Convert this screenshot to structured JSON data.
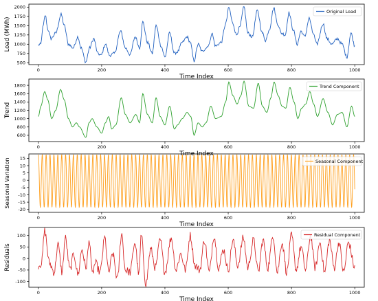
{
  "chart_data": [
    {
      "type": "line",
      "xlabel": "Time Index",
      "ylabel": "Load (MWh)",
      "xlim": [
        -30,
        1030
      ],
      "ylim": [
        450,
        2080
      ],
      "xticks": [
        0,
        200,
        400,
        600,
        800,
        1000
      ],
      "yticks": [
        500,
        750,
        1000,
        1250,
        1500,
        1750,
        2000
      ],
      "legend_position": "top-right",
      "series": [
        {
          "name": "Original Load",
          "color": "#1f5fbf",
          "keypoints": [
            [
              0,
              980
            ],
            [
              8,
              1000
            ],
            [
              14,
              1450
            ],
            [
              22,
              1780
            ],
            [
              30,
              1400
            ],
            [
              40,
              1150
            ],
            [
              55,
              1300
            ],
            [
              72,
              1800
            ],
            [
              82,
              1500
            ],
            [
              95,
              1000
            ],
            [
              110,
              900
            ],
            [
              125,
              1200
            ],
            [
              135,
              900
            ],
            [
              150,
              520
            ],
            [
              162,
              900
            ],
            [
              175,
              1150
            ],
            [
              188,
              750
            ],
            [
              198,
              700
            ],
            [
              212,
              1000
            ],
            [
              225,
              700
            ],
            [
              240,
              750
            ],
            [
              260,
              1350
            ],
            [
              275,
              900
            ],
            [
              290,
              720
            ],
            [
              306,
              1200
            ],
            [
              320,
              900
            ],
            [
              330,
              1600
            ],
            [
              345,
              1050
            ],
            [
              360,
              750
            ],
            [
              372,
              1500
            ],
            [
              388,
              950
            ],
            [
              400,
              650
            ],
            [
              415,
              1300
            ],
            [
              430,
              750
            ],
            [
              440,
              800
            ],
            [
              455,
              1050
            ],
            [
              470,
              1200
            ],
            [
              480,
              1050
            ],
            [
              492,
              550
            ],
            [
              505,
              1000
            ],
            [
              518,
              800
            ],
            [
              530,
              900
            ],
            [
              540,
              1000
            ],
            [
              548,
              1300
            ],
            [
              560,
              950
            ],
            [
              578,
              1050
            ],
            [
              592,
              1550
            ],
            [
              602,
              1980
            ],
            [
              615,
              1550
            ],
            [
              626,
              1250
            ],
            [
              636,
              1450
            ],
            [
              650,
              2000
            ],
            [
              662,
              1300
            ],
            [
              676,
              1200
            ],
            [
              692,
              1900
            ],
            [
              708,
              1300
            ],
            [
              718,
              1100
            ],
            [
              730,
              1400
            ],
            [
              744,
              1980
            ],
            [
              756,
              1550
            ],
            [
              768,
              1300
            ],
            [
              780,
              1250
            ],
            [
              792,
              1850
            ],
            [
              805,
              1400
            ],
            [
              818,
              1000
            ],
            [
              830,
              1350
            ],
            [
              842,
              1200
            ],
            [
              856,
              1700
            ],
            [
              868,
              1300
            ],
            [
              880,
              1000
            ],
            [
              900,
              1550
            ],
            [
              912,
              1150
            ],
            [
              928,
              1000
            ],
            [
              945,
              1150
            ],
            [
              960,
              1000
            ],
            [
              975,
              650
            ],
            [
              988,
              1300
            ],
            [
              1000,
              950
            ]
          ],
          "noise": 40
        }
      ]
    },
    {
      "type": "line",
      "xlabel": "Time Index",
      "ylabel": "Trend",
      "xlim": [
        -30,
        1030
      ],
      "ylim": [
        450,
        1950
      ],
      "xticks": [
        0,
        200,
        400,
        600,
        800,
        1000
      ],
      "yticks": [
        600,
        800,
        1000,
        1200,
        1400,
        1600,
        1800
      ],
      "legend_position": "top-right",
      "series": [
        {
          "name": "Trend Component",
          "color": "#2ca02c",
          "keypoints": [
            [
              0,
              1050
            ],
            [
              8,
              1300
            ],
            [
              20,
              1650
            ],
            [
              30,
              1450
            ],
            [
              42,
              1000
            ],
            [
              55,
              1200
            ],
            [
              70,
              1700
            ],
            [
              82,
              1450
            ],
            [
              95,
              1000
            ],
            [
              108,
              800
            ],
            [
              120,
              900
            ],
            [
              130,
              800
            ],
            [
              150,
              550
            ],
            [
              160,
              900
            ],
            [
              170,
              1000
            ],
            [
              185,
              800
            ],
            [
              200,
              650
            ],
            [
              212,
              900
            ],
            [
              222,
              1050
            ],
            [
              232,
              750
            ],
            [
              245,
              850
            ],
            [
              262,
              1500
            ],
            [
              275,
              1100
            ],
            [
              290,
              900
            ],
            [
              308,
              1100
            ],
            [
              320,
              900
            ],
            [
              330,
              1600
            ],
            [
              345,
              1100
            ],
            [
              360,
              900
            ],
            [
              372,
              1500
            ],
            [
              385,
              1050
            ],
            [
              400,
              850
            ],
            [
              415,
              1300
            ],
            [
              430,
              750
            ],
            [
              440,
              850
            ],
            [
              455,
              1000
            ],
            [
              470,
              1150
            ],
            [
              482,
              1050
            ],
            [
              492,
              600
            ],
            [
              505,
              900
            ],
            [
              518,
              800
            ],
            [
              530,
              900
            ],
            [
              545,
              1300
            ],
            [
              560,
              1000
            ],
            [
              578,
              1050
            ],
            [
              592,
              1400
            ],
            [
              602,
              1880
            ],
            [
              615,
              1550
            ],
            [
              628,
              1350
            ],
            [
              640,
              1550
            ],
            [
              650,
              1900
            ],
            [
              665,
              1300
            ],
            [
              680,
              1250
            ],
            [
              695,
              1850
            ],
            [
              708,
              1300
            ],
            [
              722,
              1150
            ],
            [
              735,
              1500
            ],
            [
              745,
              1880
            ],
            [
              758,
              1550
            ],
            [
              770,
              1300
            ],
            [
              782,
              1250
            ],
            [
              795,
              1750
            ],
            [
              808,
              1400
            ],
            [
              820,
              1000
            ],
            [
              832,
              1250
            ],
            [
              845,
              1350
            ],
            [
              858,
              1650
            ],
            [
              870,
              1350
            ],
            [
              882,
              1050
            ],
            [
              900,
              1480
            ],
            [
              915,
              1150
            ],
            [
              930,
              850
            ],
            [
              945,
              1100
            ],
            [
              960,
              1150
            ],
            [
              975,
              800
            ],
            [
              990,
              1300
            ],
            [
              1000,
              1050
            ]
          ],
          "noise": 0
        }
      ]
    },
    {
      "type": "line",
      "xlabel": "Time Index",
      "ylabel": "Seasonal Variation",
      "xlim": [
        -30,
        1030
      ],
      "ylim": [
        -22,
        18
      ],
      "xticks": [
        0,
        200,
        400,
        600,
        800,
        1000
      ],
      "yticks": [
        -20,
        -15,
        -10,
        -5,
        0,
        5,
        10,
        15
      ],
      "legend_position": "top-right",
      "series": [
        {
          "name": "Seasonal Component",
          "color": "#ff9f1c",
          "amplitude": 18,
          "offset": -0.5,
          "period": 12.3,
          "start": 0,
          "end": 1000
        }
      ]
    },
    {
      "type": "line",
      "xlabel": "Time Index",
      "ylabel": "Residuals",
      "xlim": [
        -30,
        1030
      ],
      "ylim": [
        -125,
        135
      ],
      "xticks": [
        0,
        200,
        400,
        600,
        800,
        1000
      ],
      "yticks": [
        -100,
        -50,
        0,
        50,
        100
      ],
      "legend_position": "top-right",
      "series": [
        {
          "name": "Residual Component",
          "color": "#d62728",
          "keypoints": [
            [
              0,
              -30
            ],
            [
              10,
              -20
            ],
            [
              20,
              120
            ],
            [
              35,
              -20
            ],
            [
              50,
              -60
            ],
            [
              62,
              60
            ],
            [
              75,
              -60
            ],
            [
              85,
              90
            ],
            [
              100,
              -50
            ],
            [
              112,
              20
            ],
            [
              125,
              -70
            ],
            [
              138,
              40
            ],
            [
              150,
              -40
            ],
            [
              162,
              80
            ],
            [
              170,
              -70
            ],
            [
              180,
              -20
            ],
            [
              195,
              -60
            ],
            [
              210,
              90
            ],
            [
              222,
              -60
            ],
            [
              235,
              20
            ],
            [
              250,
              -90
            ],
            [
              263,
              110
            ],
            [
              275,
              -50
            ],
            [
              290,
              -60
            ],
            [
              305,
              70
            ],
            [
              318,
              -70
            ],
            [
              325,
              100
            ],
            [
              340,
              -110
            ],
            [
              355,
              40
            ],
            [
              370,
              -40
            ],
            [
              385,
              80
            ],
            [
              400,
              -60
            ],
            [
              420,
              90
            ],
            [
              435,
              -50
            ],
            [
              450,
              20
            ],
            [
              465,
              -50
            ],
            [
              480,
              100
            ],
            [
              495,
              -30
            ],
            [
              510,
              -50
            ],
            [
              525,
              80
            ],
            [
              540,
              -60
            ],
            [
              555,
              100
            ],
            [
              570,
              -40
            ],
            [
              585,
              40
            ],
            [
              600,
              -50
            ],
            [
              615,
              80
            ],
            [
              630,
              -30
            ],
            [
              648,
              90
            ],
            [
              662,
              -40
            ],
            [
              680,
              80
            ],
            [
              695,
              -60
            ],
            [
              710,
              80
            ],
            [
              725,
              -40
            ],
            [
              742,
              100
            ],
            [
              755,
              -60
            ],
            [
              770,
              70
            ],
            [
              785,
              -60
            ],
            [
              800,
              100
            ],
            [
              815,
              -50
            ],
            [
              830,
              50
            ],
            [
              845,
              -50
            ],
            [
              860,
              100
            ],
            [
              875,
              -40
            ],
            [
              890,
              70
            ],
            [
              905,
              -60
            ],
            [
              920,
              80
            ],
            [
              935,
              -40
            ],
            [
              950,
              70
            ],
            [
              965,
              -60
            ],
            [
              980,
              70
            ],
            [
              1000,
              -40
            ]
          ],
          "noise": 18
        }
      ]
    }
  ]
}
